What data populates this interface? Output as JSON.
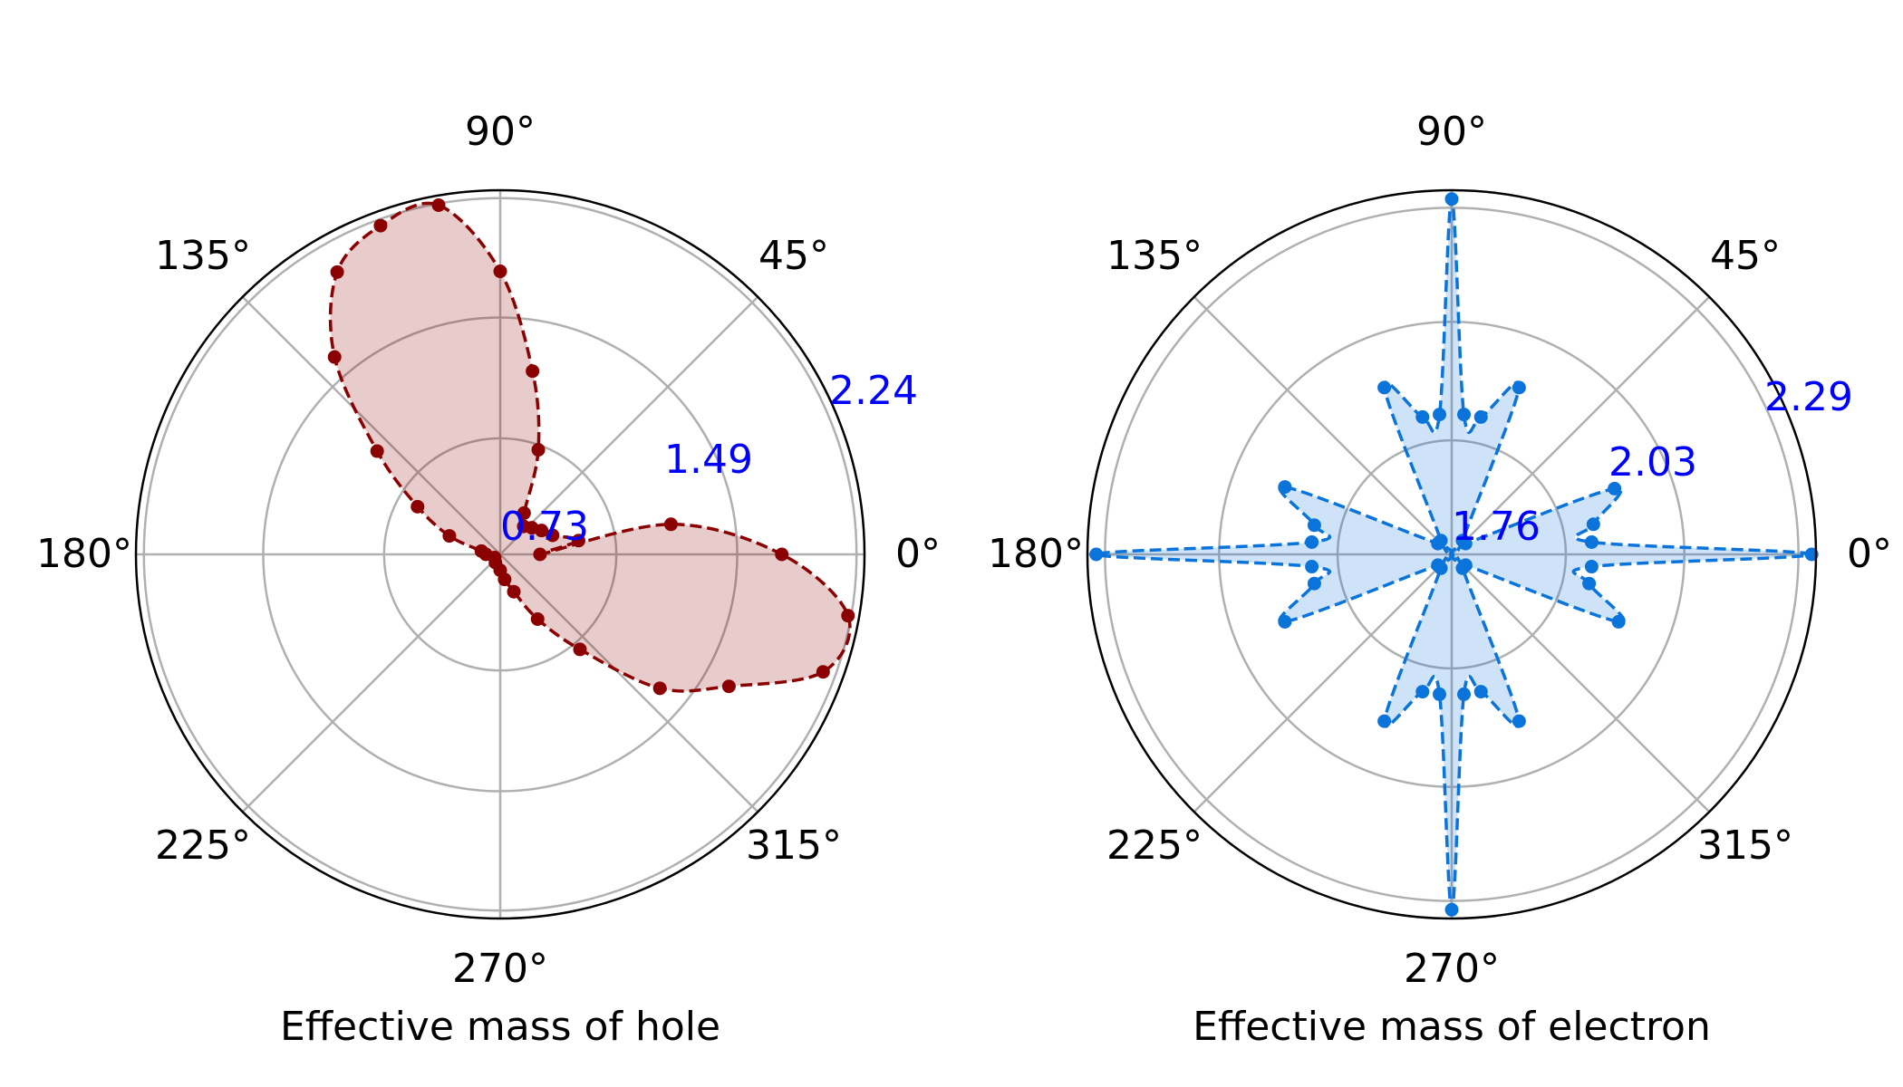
{
  "chart_data": [
    {
      "type": "polar",
      "xlabel": "Effective mass of hole",
      "angle_ticks": [
        "0°",
        "45°",
        "90°",
        "135°",
        "180°",
        "225°",
        "270°",
        "315°"
      ],
      "radial_ticks": [
        "0.73",
        "1.49",
        "2.24"
      ],
      "radial_tick_values": [
        0.73,
        1.49,
        2.24
      ],
      "rlim": [
        0,
        2.29
      ],
      "radial_tick_color": "#0000ff",
      "line_color": "#8b0000",
      "fill_color": "#8b0000",
      "fill_alpha": 0.2,
      "line_style": "dashed",
      "points": [
        {
          "angle_deg": 0,
          "r": 0.25
        },
        {
          "angle_deg": 10,
          "r": 0.5
        },
        {
          "angle_deg": 20,
          "r": 0.35
        },
        {
          "angle_deg": 30,
          "r": 0.3
        },
        {
          "angle_deg": 40,
          "r": 0.26
        },
        {
          "angle_deg": 50,
          "r": 0.23
        },
        {
          "angle_deg": 60,
          "r": 0.3
        },
        {
          "angle_deg": 70,
          "r": 0.7
        },
        {
          "angle_deg": 80,
          "r": 1.17
        },
        {
          "angle_deg": 90,
          "r": 1.78
        },
        {
          "angle_deg": 100,
          "r": 2.23
        },
        {
          "angle_deg": 110,
          "r": 2.2
        },
        {
          "angle_deg": 120,
          "r": 2.05
        },
        {
          "angle_deg": 130,
          "r": 1.62
        },
        {
          "angle_deg": 140,
          "r": 1.01
        },
        {
          "angle_deg": 150,
          "r": 0.6
        },
        {
          "angle_deg": 160,
          "r": 0.34
        },
        {
          "angle_deg": 170,
          "r": 0.12
        },
        {
          "angle_deg": 180,
          "r": 0.09
        },
        {
          "angle_deg": 210,
          "r": 0.04
        },
        {
          "angle_deg": 240,
          "r": 0.06
        },
        {
          "angle_deg": 270,
          "r": 0.1
        },
        {
          "angle_deg": 280,
          "r": 0.16
        },
        {
          "angle_deg": 290,
          "r": 0.25
        },
        {
          "angle_deg": 300,
          "r": 0.47
        },
        {
          "angle_deg": 310,
          "r": 0.78
        },
        {
          "angle_deg": 320,
          "r": 1.31
        },
        {
          "angle_deg": 330,
          "r": 1.66
        },
        {
          "angle_deg": 340,
          "r": 2.16
        },
        {
          "angle_deg": 350,
          "r": 2.22
        },
        {
          "angle_deg": 360,
          "r": 1.77
        },
        {
          "angle_deg": 370,
          "r": 1.09
        }
      ]
    },
    {
      "type": "polar",
      "xlabel": "Effective mass of electron",
      "angle_ticks": [
        "0°",
        "45°",
        "90°",
        "135°",
        "180°",
        "225°",
        "270°",
        "315°"
      ],
      "radial_ticks": [
        "1.76",
        "2.03",
        "2.29"
      ],
      "radial_tick_values": [
        1.76,
        2.03,
        2.29
      ],
      "rlim": [
        1.5,
        2.33
      ],
      "radial_tick_color": "#0000ff",
      "line_color": "#0a74da",
      "fill_color": "#0a74da",
      "fill_alpha": 0.2,
      "line_style": "dashed",
      "points": [
        {
          "angle_deg": 0,
          "r": 2.32
        },
        {
          "angle_deg": 5,
          "r": 1.82
        },
        {
          "angle_deg": 12,
          "r": 1.83
        },
        {
          "angle_deg": 22,
          "r": 1.9
        },
        {
          "angle_deg": 38,
          "r": 1.54
        },
        {
          "angle_deg": 52,
          "r": 1.54
        },
        {
          "angle_deg": 68,
          "r": 1.91
        },
        {
          "angle_deg": 78,
          "r": 1.82
        },
        {
          "angle_deg": 85,
          "r": 1.82
        },
        {
          "angle_deg": 90,
          "r": 2.31
        },
        {
          "angle_deg": 95,
          "r": 1.82
        },
        {
          "angle_deg": 102,
          "r": 1.82
        },
        {
          "angle_deg": 112,
          "r": 1.91
        },
        {
          "angle_deg": 128,
          "r": 1.54
        },
        {
          "angle_deg": 142,
          "r": 1.54
        },
        {
          "angle_deg": 158,
          "r": 1.91
        },
        {
          "angle_deg": 168,
          "r": 1.82
        },
        {
          "angle_deg": 175,
          "r": 1.82
        },
        {
          "angle_deg": 180,
          "r": 2.31
        },
        {
          "angle_deg": 185,
          "r": 1.82
        },
        {
          "angle_deg": 192,
          "r": 1.82
        },
        {
          "angle_deg": 202,
          "r": 1.91
        },
        {
          "angle_deg": 218,
          "r": 1.54
        },
        {
          "angle_deg": 232,
          "r": 1.54
        },
        {
          "angle_deg": 248,
          "r": 1.91
        },
        {
          "angle_deg": 258,
          "r": 1.82
        },
        {
          "angle_deg": 265,
          "r": 1.82
        },
        {
          "angle_deg": 270,
          "r": 2.31
        },
        {
          "angle_deg": 275,
          "r": 1.82
        },
        {
          "angle_deg": 282,
          "r": 1.82
        },
        {
          "angle_deg": 292,
          "r": 1.91
        },
        {
          "angle_deg": 308,
          "r": 1.54
        },
        {
          "angle_deg": 322,
          "r": 1.54
        },
        {
          "angle_deg": 338,
          "r": 1.91
        },
        {
          "angle_deg": 348,
          "r": 1.82
        },
        {
          "angle_deg": 355,
          "r": 1.82
        }
      ]
    }
  ]
}
